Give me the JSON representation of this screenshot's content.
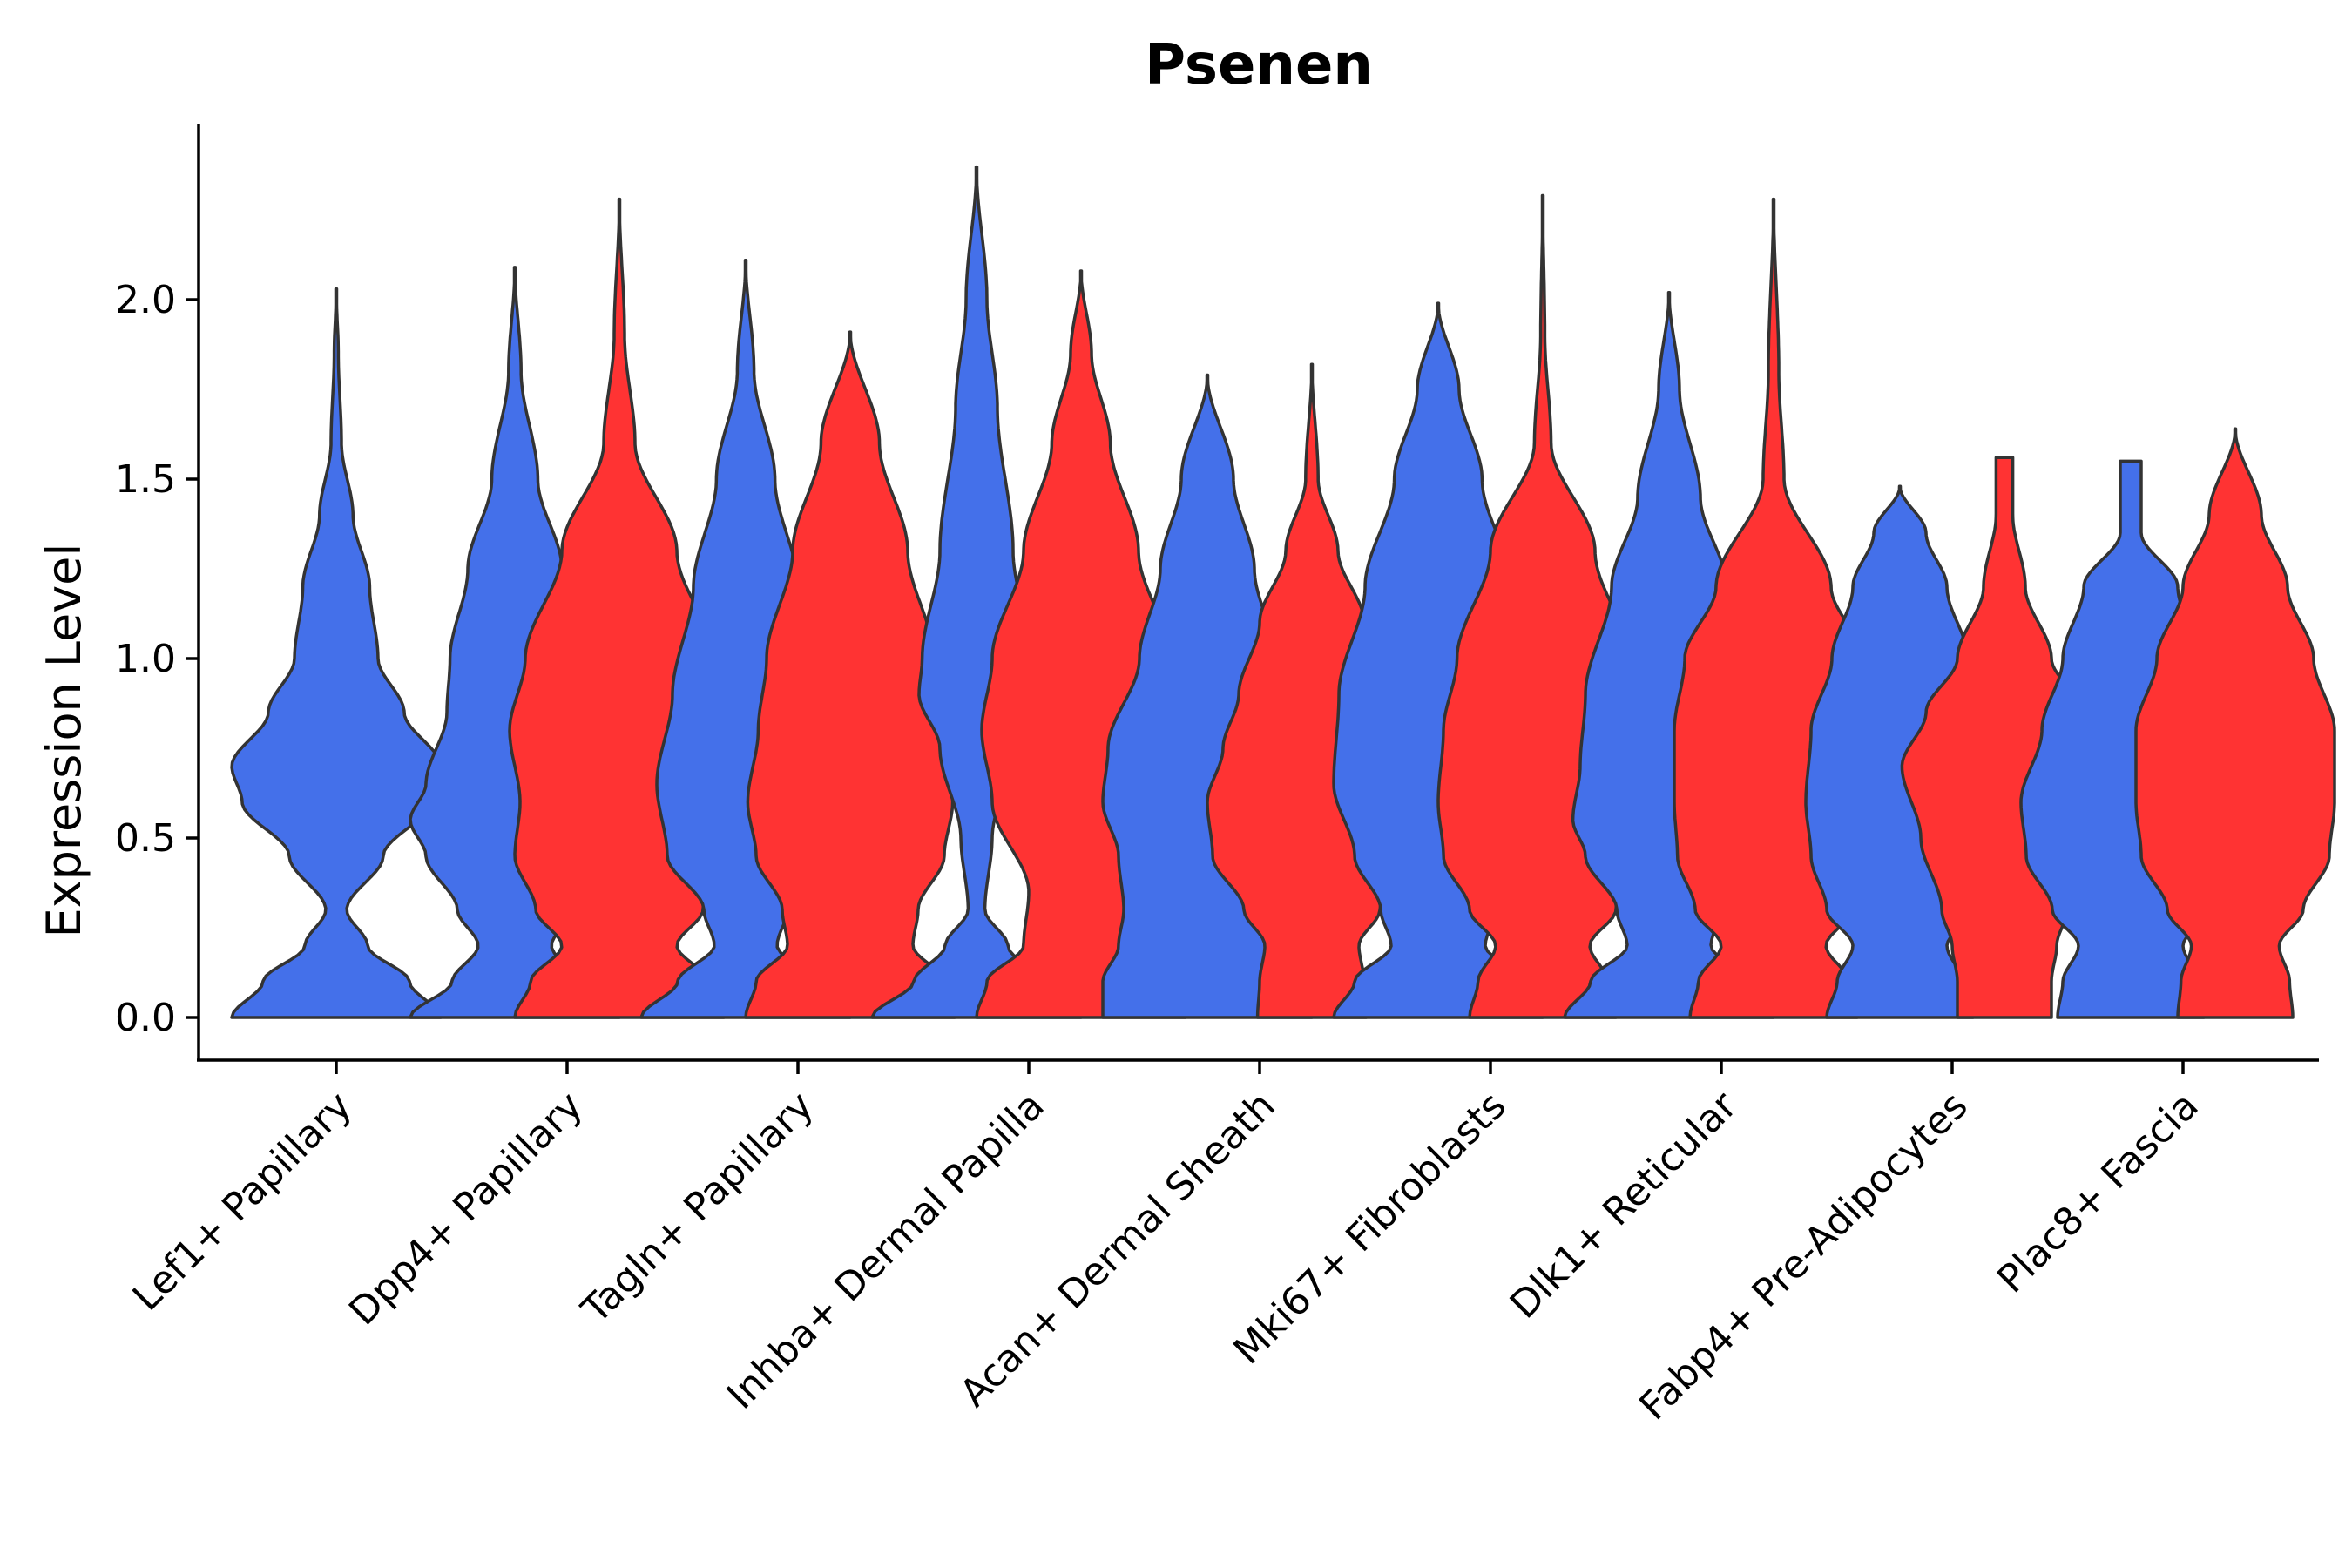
{
  "chart_data": {
    "type": "violin",
    "title": "Psenen",
    "xlabel": "",
    "ylabel": "Expression Level",
    "ylim": [
      -0.12,
      2.48
    ],
    "yticks": [
      "0.0",
      "0.5",
      "1.0",
      "1.5",
      "2.0"
    ],
    "colors": {
      "group1": "#4470EA",
      "group2": "#FF3333",
      "stroke": "#333333"
    },
    "categories": [
      "Lef1+ Papillary",
      "Dpp4+ Papillary",
      "Tagln+ Papillary",
      "Inhba+ Dermal Papilla",
      "Acan+ Dermal Sheath",
      "Mki67+ Fibroblasts",
      "Dlk1+ Reticular",
      "Fabp4+ Pre-Adipocytes",
      "Plac8+ Fascia"
    ],
    "series": [
      {
        "name": "group1",
        "violins": [
          {
            "max": 2.03,
            "profile": [
              [
                0,
                1
              ],
              [
                0.1,
                0.7
              ],
              [
                0.2,
                0.3
              ],
              [
                0.3,
                0.1
              ],
              [
                0.45,
                0.45
              ],
              [
                0.6,
                0.9
              ],
              [
                0.7,
                1.0
              ],
              [
                0.85,
                0.65
              ],
              [
                1.0,
                0.4
              ],
              [
                1.2,
                0.32
              ],
              [
                1.4,
                0.16
              ],
              [
                1.6,
                0.05
              ],
              [
                1.85,
                0.02
              ],
              [
                2.03,
                0
              ]
            ]
          },
          {
            "max": 2.09,
            "profile": [
              [
                0,
                1
              ],
              [
                0.1,
                0.6
              ],
              [
                0.2,
                0.35
              ],
              [
                0.3,
                0.55
              ],
              [
                0.45,
                0.85
              ],
              [
                0.55,
                1.0
              ],
              [
                0.65,
                0.85
              ],
              [
                0.85,
                0.65
              ],
              [
                1.0,
                0.62
              ],
              [
                1.25,
                0.45
              ],
              [
                1.5,
                0.22
              ],
              [
                1.8,
                0.06
              ],
              [
                2.09,
                0
              ]
            ]
          },
          {
            "max": 2.11,
            "profile": [
              [
                0,
                1
              ],
              [
                0.1,
                0.65
              ],
              [
                0.2,
                0.3
              ],
              [
                0.3,
                0.4
              ],
              [
                0.45,
                0.75
              ],
              [
                0.65,
                0.85
              ],
              [
                0.9,
                0.7
              ],
              [
                1.2,
                0.5
              ],
              [
                1.5,
                0.28
              ],
              [
                1.8,
                0.08
              ],
              [
                2.11,
                0
              ]
            ]
          },
          {
            "max": 2.37,
            "profile": [
              [
                0,
                1
              ],
              [
                0.1,
                0.6
              ],
              [
                0.2,
                0.3
              ],
              [
                0.3,
                0.08
              ],
              [
                0.5,
                0.15
              ],
              [
                0.75,
                0.35
              ],
              [
                0.9,
                0.55
              ],
              [
                1.0,
                0.52
              ],
              [
                1.3,
                0.35
              ],
              [
                1.7,
                0.2
              ],
              [
                2.0,
                0.1
              ],
              [
                2.37,
                0
              ]
            ]
          },
          {
            "max": 1.79,
            "profile": [
              [
                0,
                1
              ],
              [
                0.1,
                1.0
              ],
              [
                0.2,
                0.85
              ],
              [
                0.3,
                0.8
              ],
              [
                0.45,
                0.85
              ],
              [
                0.6,
                1.0
              ],
              [
                0.75,
                0.95
              ],
              [
                1.0,
                0.65
              ],
              [
                1.25,
                0.45
              ],
              [
                1.5,
                0.25
              ],
              [
                1.79,
                0
              ]
            ]
          },
          {
            "max": 1.99,
            "profile": [
              [
                0,
                1
              ],
              [
                0.1,
                0.8
              ],
              [
                0.2,
                0.45
              ],
              [
                0.3,
                0.55
              ],
              [
                0.45,
                0.8
              ],
              [
                0.65,
                1.0
              ],
              [
                0.9,
                0.95
              ],
              [
                1.2,
                0.7
              ],
              [
                1.5,
                0.42
              ],
              [
                1.75,
                0.2
              ],
              [
                1.99,
                0
              ]
            ]
          },
          {
            "max": 2.02,
            "profile": [
              [
                0,
                1
              ],
              [
                0.1,
                0.75
              ],
              [
                0.2,
                0.4
              ],
              [
                0.3,
                0.5
              ],
              [
                0.45,
                0.8
              ],
              [
                0.55,
                0.92
              ],
              [
                0.7,
                0.85
              ],
              [
                0.9,
                0.8
              ],
              [
                1.2,
                0.55
              ],
              [
                1.45,
                0.3
              ],
              [
                1.75,
                0.1
              ],
              [
                2.02,
                0
              ]
            ]
          },
          {
            "max": 1.48,
            "profile": [
              [
                0,
                0.7
              ],
              [
                0.1,
                0.6
              ],
              [
                0.2,
                0.45
              ],
              [
                0.3,
                0.7
              ],
              [
                0.45,
                0.85
              ],
              [
                0.6,
                0.9
              ],
              [
                0.8,
                0.85
              ],
              [
                1.0,
                0.65
              ],
              [
                1.2,
                0.45
              ],
              [
                1.35,
                0.25
              ],
              [
                1.48,
                0
              ]
            ]
          },
          {
            "max": 1.55,
            "profile": [
              [
                0,
                0.7
              ],
              [
                0.1,
                0.65
              ],
              [
                0.2,
                0.5
              ],
              [
                0.3,
                0.75
              ],
              [
                0.45,
                1.0
              ],
              [
                0.6,
                1.05
              ],
              [
                0.8,
                0.85
              ],
              [
                1.0,
                0.65
              ],
              [
                1.2,
                0.45
              ],
              [
                1.35,
                0.1
              ],
              [
                1.55,
                0.1
              ]
            ]
          }
        ]
      },
      {
        "name": "group2",
        "violins": [
          null,
          {
            "max": 2.28,
            "profile": [
              [
                0,
                1
              ],
              [
                0.1,
                0.85
              ],
              [
                0.2,
                0.55
              ],
              [
                0.3,
                0.8
              ],
              [
                0.45,
                1.0
              ],
              [
                0.6,
                0.95
              ],
              [
                0.8,
                1.05
              ],
              [
                1.0,
                0.9
              ],
              [
                1.3,
                0.55
              ],
              [
                1.6,
                0.15
              ],
              [
                1.9,
                0.05
              ],
              [
                2.28,
                0
              ]
            ]
          },
          {
            "max": 1.91,
            "profile": [
              [
                0,
                1
              ],
              [
                0.1,
                0.9
              ],
              [
                0.2,
                0.6
              ],
              [
                0.3,
                0.65
              ],
              [
                0.45,
                0.9
              ],
              [
                0.6,
                0.98
              ],
              [
                0.8,
                0.88
              ],
              [
                1.0,
                0.8
              ],
              [
                1.3,
                0.55
              ],
              [
                1.6,
                0.28
              ],
              [
                1.91,
                0
              ]
            ]
          },
          {
            "max": 2.08,
            "profile": [
              [
                0,
                1
              ],
              [
                0.1,
                0.9
              ],
              [
                0.2,
                0.55
              ],
              [
                0.35,
                0.5
              ],
              [
                0.6,
                0.85
              ],
              [
                0.8,
                0.95
              ],
              [
                1.0,
                0.85
              ],
              [
                1.3,
                0.55
              ],
              [
                1.6,
                0.28
              ],
              [
                1.85,
                0.1
              ],
              [
                2.08,
                0
              ]
            ]
          },
          {
            "max": 1.82,
            "profile": [
              [
                0,
                0.52
              ],
              [
                0.1,
                0.5
              ],
              [
                0.2,
                0.45
              ],
              [
                0.3,
                0.65
              ],
              [
                0.45,
                0.95
              ],
              [
                0.6,
                1.0
              ],
              [
                0.75,
                0.85
              ],
              [
                0.9,
                0.7
              ],
              [
                1.1,
                0.5
              ],
              [
                1.3,
                0.25
              ],
              [
                1.5,
                0.06
              ],
              [
                1.82,
                0
              ]
            ]
          },
          {
            "max": 2.29,
            "profile": [
              [
                0,
                0.7
              ],
              [
                0.1,
                0.62
              ],
              [
                0.2,
                0.45
              ],
              [
                0.3,
                0.7
              ],
              [
                0.45,
                0.95
              ],
              [
                0.6,
                1.0
              ],
              [
                0.8,
                0.95
              ],
              [
                1.0,
                0.82
              ],
              [
                1.3,
                0.5
              ],
              [
                1.6,
                0.08
              ],
              [
                1.9,
                0.02
              ],
              [
                2.29,
                0
              ]
            ]
          },
          {
            "max": 2.28,
            "profile": [
              [
                0,
                0.8
              ],
              [
                0.1,
                0.72
              ],
              [
                0.2,
                0.5
              ],
              [
                0.3,
                0.75
              ],
              [
                0.45,
                0.92
              ],
              [
                0.6,
                0.95
              ],
              [
                0.8,
                0.95
              ],
              [
                1.0,
                0.85
              ],
              [
                1.2,
                0.55
              ],
              [
                1.5,
                0.1
              ],
              [
                1.8,
                0.05
              ],
              [
                2.28,
                0
              ]
            ]
          },
          {
            "max": 1.56,
            "profile": [
              [
                0,
                0.45
              ],
              [
                0.1,
                0.45
              ],
              [
                0.2,
                0.5
              ],
              [
                0.3,
                0.6
              ],
              [
                0.5,
                0.8
              ],
              [
                0.7,
                0.98
              ],
              [
                0.85,
                0.75
              ],
              [
                1.0,
                0.45
              ],
              [
                1.2,
                0.2
              ],
              [
                1.4,
                0.08
              ],
              [
                1.56,
                0.08
              ]
            ]
          },
          {
            "max": 1.64,
            "profile": [
              [
                0,
                0.55
              ],
              [
                0.1,
                0.52
              ],
              [
                0.2,
                0.42
              ],
              [
                0.3,
                0.65
              ],
              [
                0.45,
                0.9
              ],
              [
                0.6,
                0.95
              ],
              [
                0.8,
                0.95
              ],
              [
                1.0,
                0.75
              ],
              [
                1.2,
                0.5
              ],
              [
                1.4,
                0.25
              ],
              [
                1.64,
                0
              ]
            ]
          }
        ]
      }
    ]
  }
}
